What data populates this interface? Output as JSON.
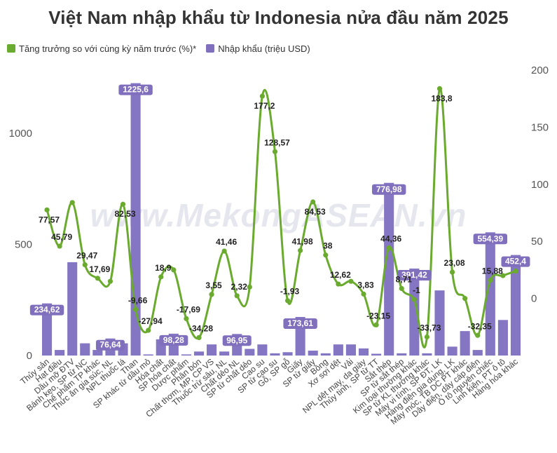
{
  "title": "Việt Nam nhập khẩu từ Indonesia nửa đầu năm 2025",
  "watermark": "www.MekongASEAN.vn",
  "legend": {
    "items": [
      {
        "label": "Tăng trưởng so với cùng kỳ năm trước (%)*",
        "color": "#6aaa2e"
      },
      {
        "label": "Nhập khẩu (triệu USD)",
        "color": "#7f6fbc"
      }
    ],
    "placement": "top-left"
  },
  "colors": {
    "bar": "#8576c3",
    "line": "#6aaa2e",
    "bar_label_bg": "#7f6fbc"
  },
  "chart_data": {
    "type": "bar",
    "title": "Việt Nam nhập khẩu từ Indonesia nửa đầu năm 2025",
    "xlabel": "",
    "ylabel": "",
    "grid": false,
    "categories": [
      "Thủy sản",
      "Hạt điều",
      "Dầu mỡ ĐTV",
      "Bánh kẹo, SP từ NC",
      "Chế phẩm TP khác",
      "Thức ăn gia súc, NL",
      "NPL thuốc lá",
      "Than",
      "SP khác từ dầu mỏ",
      "Hóa chất",
      "SP hóa chất",
      "Dược phẩm",
      "Phân bón",
      "Chất thơm, MP, CP VS",
      "Thuốc trừ sâu, NL",
      "Chất dẻo NL",
      "SP từ chất dẻo",
      "Cao su",
      "SP từ cao su",
      "Gỗ, SP gỗ",
      "Giấy",
      "SP từ giấy",
      "Bông",
      "Xơ sợi dệt",
      "Vải",
      "NPL dệt may, da giày",
      "Thủy tinh, SP từ TT",
      "Sắt thép",
      "SP từ sắt thép",
      "Kim loại thường khác",
      "SP từ KL thường khác",
      "Máy vi tính, SP ĐT, LK",
      "Hàng điện gia dụng, LK",
      "Máy móc, TB DC PT khác",
      "Dây điện, dây cáp điện",
      "Ô tô nguyên chiếc",
      "Linh kiện, PT ô tô",
      "Hàng hóa khác"
    ],
    "series": [
      {
        "name": "Nhập khẩu (triệu USD)",
        "type": "bar",
        "axis": "left",
        "values": [
          234.62,
          25,
          420,
          55,
          25,
          76.64,
          55,
          1225.6,
          5,
          73,
          98.28,
          5,
          18,
          50,
          18,
          96.95,
          30,
          50,
          10,
          15,
          173.61,
          22,
          10,
          50,
          50,
          32,
          8,
          776.98,
          10,
          391.42,
          10,
          293,
          40,
          110,
          25,
          554.39,
          160,
          452.4
        ],
        "labels": [
          "234,62",
          "",
          "",
          "",
          "",
          "76,64",
          "",
          "1225,6",
          "",
          "",
          "98,28",
          "",
          "",
          "",
          "",
          "96,95",
          "",
          "",
          "",
          "",
          "173,61",
          "",
          "",
          "",
          "",
          "",
          "",
          "776,98",
          "",
          "391,42",
          "",
          "",
          "",
          "",
          "",
          "554,39",
          "",
          "452,4"
        ]
      },
      {
        "name": "Tăng trưởng so với cùng kỳ năm trước (%)*",
        "type": "line",
        "axis": "right",
        "values": [
          77.57,
          45.79,
          84.0,
          29.47,
          17.69,
          15.0,
          82.53,
          -9.66,
          -27.94,
          18.9,
          25.0,
          -17.69,
          -34.28,
          3.55,
          41.46,
          2.32,
          10.0,
          177.2,
          128.57,
          -1.93,
          41.98,
          84.53,
          38.0,
          12.62,
          15.0,
          3.83,
          -23.15,
          44.36,
          8.71,
          -1.0,
          -33.73,
          183.8,
          23.08,
          0.0,
          -32.35,
          15.88,
          20.0,
          24.0
        ],
        "labels": [
          "77,57",
          "45,79",
          "",
          "29,47",
          "17,69",
          "",
          "82,53",
          "-9,66",
          "-27,94",
          "18,9",
          "",
          "-17,69",
          "-34,28",
          "3,55",
          "41,46",
          "2,32",
          "",
          "177,2",
          "128,57",
          "-1,93",
          "41,98",
          "84,53",
          "38",
          "12,62",
          "",
          "3,83",
          "-23,15",
          "44,36",
          "8,71",
          "-1",
          "-33,73",
          "183,8",
          "23,08",
          "",
          "-32,35",
          "15,88",
          "",
          ""
        ]
      }
    ],
    "y_left": {
      "ticks": [
        "0",
        "500",
        "1000"
      ],
      "ylim": [
        0,
        1300
      ]
    },
    "y_right": {
      "ticks": [
        "0",
        "50",
        "100",
        "150",
        "200"
      ],
      "ylim": [
        -50,
        200
      ]
    }
  }
}
